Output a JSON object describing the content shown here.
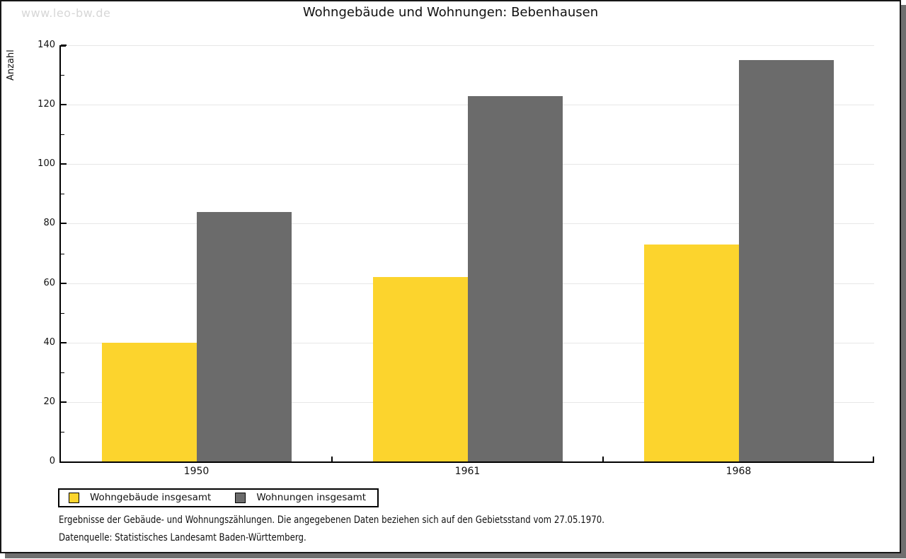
{
  "watermark": "www.leo-bw.de",
  "chart_data": {
    "type": "bar",
    "title": "Wohngebäude und Wohnungen: Bebenhausen",
    "xlabel": "",
    "ylabel": "Anzahl",
    "categories": [
      "1950",
      "1961",
      "1968"
    ],
    "series": [
      {
        "name": "Wohngebäude insgesamt",
        "color": "#FCD42D",
        "values": [
          40,
          62,
          73
        ]
      },
      {
        "name": "Wohnungen insgesamt",
        "color": "#6B6B6B",
        "values": [
          84,
          123,
          135
        ]
      }
    ],
    "ylim": [
      0,
      140
    ],
    "ytick_step": 20,
    "yminor_step": 10,
    "grid": "horizontal-major-only",
    "gridline_color": "#e7e7e7",
    "legend_position": "bottom-left"
  },
  "footnotes": {
    "line1": "Ergebnisse der Gebäude- und Wohnungszählungen. Die angegebenen Daten beziehen sich auf den Gebietsstand vom 27.05.1970.",
    "line2": "Datenquelle: Statistisches Landesamt Baden-Württemberg."
  }
}
